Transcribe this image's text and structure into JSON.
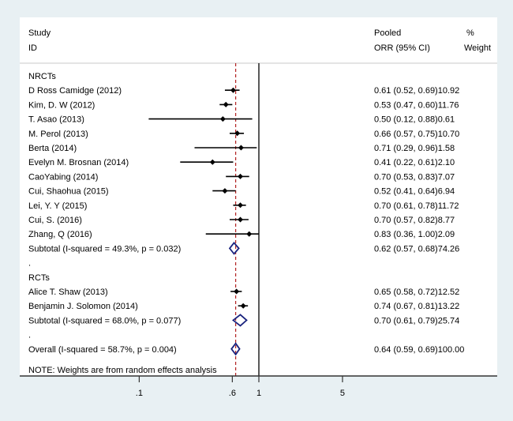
{
  "chart_data": {
    "type": "forest",
    "scale": "log",
    "header": {
      "study": "Study",
      "id": "ID",
      "pooled": "Pooled",
      "orr": "ORR (95% CI)",
      "pct": "%",
      "weight": "Weight"
    },
    "xticks": [
      0.1,
      0.6,
      1,
      5
    ],
    "xtick_labels": [
      ".1",
      ".6",
      "1",
      "5"
    ],
    "null_line": 1,
    "overall_line": 0.64,
    "rows": [
      {
        "kind": "group",
        "label": "NRCTs"
      },
      {
        "kind": "study",
        "label": "D Ross Camidge (2012)",
        "est": 0.61,
        "lo": 0.52,
        "hi": 0.69,
        "ci_text": "0.61 (0.52, 0.69)",
        "weight": "10.92"
      },
      {
        "kind": "study",
        "label": "Kim, D. W (2012)",
        "est": 0.53,
        "lo": 0.47,
        "hi": 0.6,
        "ci_text": "0.53 (0.47, 0.60)",
        "weight": "11.76"
      },
      {
        "kind": "study",
        "label": "T. Asao (2013)",
        "est": 0.5,
        "lo": 0.12,
        "hi": 0.88,
        "ci_text": "0.50 (0.12, 0.88)",
        "weight": "0.61"
      },
      {
        "kind": "study",
        "label": "M. Perol (2013)",
        "est": 0.66,
        "lo": 0.57,
        "hi": 0.75,
        "ci_text": "0.66 (0.57, 0.75)",
        "weight": "10.70"
      },
      {
        "kind": "study",
        "label": "Berta (2014)",
        "est": 0.71,
        "lo": 0.29,
        "hi": 0.96,
        "ci_text": "0.71 (0.29, 0.96)",
        "weight": "1.58"
      },
      {
        "kind": "study",
        "label": "Evelyn M. Brosnan (2014)",
        "est": 0.41,
        "lo": 0.22,
        "hi": 0.61,
        "ci_text": "0.41 (0.22, 0.61)",
        "weight": "2.10"
      },
      {
        "kind": "study",
        "label": "CaoYabing (2014)",
        "est": 0.7,
        "lo": 0.53,
        "hi": 0.83,
        "ci_text": "0.70 (0.53, 0.83)",
        "weight": "7.07"
      },
      {
        "kind": "study",
        "label": "Cui, Shaohua (2015)",
        "est": 0.52,
        "lo": 0.41,
        "hi": 0.64,
        "ci_text": "0.52 (0.41, 0.64)",
        "weight": "6.94"
      },
      {
        "kind": "study",
        "label": "Lei, Y. Y (2015)",
        "est": 0.7,
        "lo": 0.61,
        "hi": 0.78,
        "ci_text": "0.70 (0.61, 0.78)",
        "weight": "11.72"
      },
      {
        "kind": "study",
        "label": "Cui, S.  (2016)",
        "est": 0.7,
        "lo": 0.57,
        "hi": 0.82,
        "ci_text": "0.70 (0.57, 0.82)",
        "weight": "8.77"
      },
      {
        "kind": "study",
        "label": "Zhang, Q  (2016)",
        "est": 0.83,
        "lo": 0.36,
        "hi": 1.0,
        "ci_text": "0.83 (0.36, 1.00)",
        "weight": "2.09"
      },
      {
        "kind": "pooled",
        "label": "Subtotal  (I-squared = 49.3%, p = 0.032)",
        "est": 0.62,
        "lo": 0.57,
        "hi": 0.68,
        "ci_text": "0.62 (0.57, 0.68)",
        "weight": "74.26"
      },
      {
        "kind": "group",
        "label": "."
      },
      {
        "kind": "group",
        "label": "RCTs"
      },
      {
        "kind": "study",
        "label": "Alice T. Shaw  (2013)",
        "est": 0.65,
        "lo": 0.58,
        "hi": 0.72,
        "ci_text": "0.65 (0.58, 0.72)",
        "weight": "12.52"
      },
      {
        "kind": "study",
        "label": "Benjamin J. Solomon (2014)",
        "est": 0.74,
        "lo": 0.67,
        "hi": 0.81,
        "ci_text": "0.74 (0.67, 0.81)",
        "weight": "13.22"
      },
      {
        "kind": "pooled",
        "label": "Subtotal  (I-squared = 68.0%, p = 0.077)",
        "est": 0.7,
        "lo": 0.61,
        "hi": 0.79,
        "ci_text": "0.70 (0.61, 0.79)",
        "weight": "25.74"
      },
      {
        "kind": "group",
        "label": "."
      },
      {
        "kind": "pooled",
        "label": "Overall  (I-squared = 58.7%, p = 0.004)",
        "est": 0.64,
        "lo": 0.59,
        "hi": 0.69,
        "ci_text": "0.64 (0.59, 0.69)",
        "weight": "100.00"
      }
    ],
    "note": "NOTE: Weights are from random effects analysis",
    "colors": {
      "pooled_diamond": "#1a237e",
      "overall_line": "#b22222",
      "point": "#000000",
      "background": "#e8f0f3",
      "panel": "#ffffff"
    }
  }
}
